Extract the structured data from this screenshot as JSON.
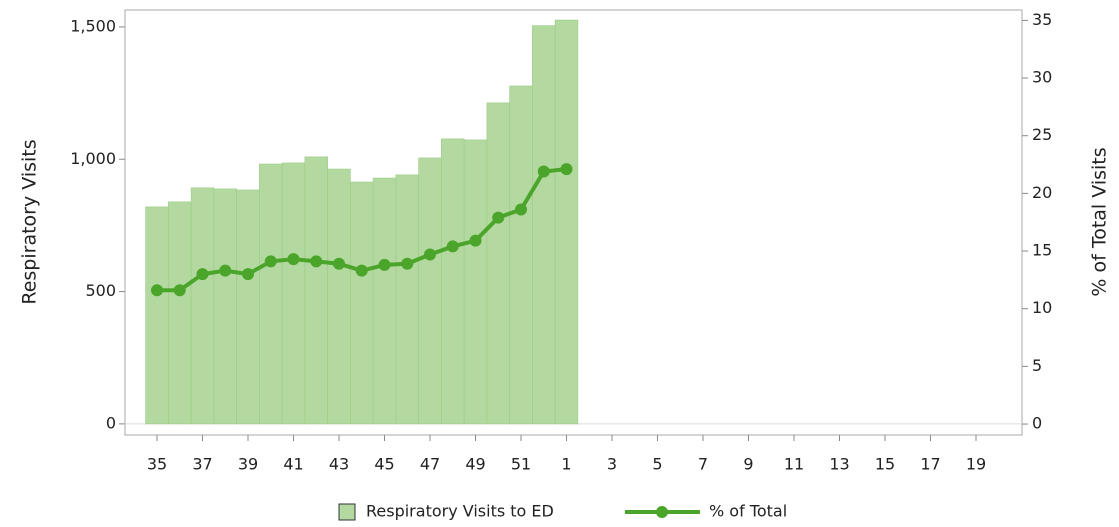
{
  "chart_data": {
    "type": "bar",
    "categories": [
      "35",
      null,
      "37",
      null,
      "39",
      null,
      "41",
      null,
      "43",
      null,
      "45",
      null,
      "47",
      null,
      "49",
      null,
      "51",
      null,
      "1",
      null,
      "3",
      null,
      "5",
      null,
      "7",
      null,
      "9",
      null,
      "11",
      null,
      "13",
      null,
      "15",
      null,
      "17",
      null,
      "19",
      null
    ],
    "series": [
      {
        "name": "Respiratory Visits to ED",
        "type": "bar",
        "color": "#b3d9a0",
        "values": [
          820,
          839,
          892,
          888,
          884,
          982,
          986,
          1009,
          963,
          914,
          929,
          941,
          1005,
          1077,
          1073,
          1213,
          1277,
          1505,
          1526,
          null,
          null,
          null,
          null,
          null,
          null,
          null,
          null,
          null,
          null,
          null,
          null,
          null,
          null,
          null,
          null,
          null,
          null,
          null
        ]
      },
      {
        "name": "% of Total",
        "type": "line",
        "axis": "y2",
        "color": "#4aa52a",
        "values": [
          11.6,
          11.6,
          13.0,
          13.3,
          13.0,
          14.1,
          14.3,
          14.1,
          13.9,
          13.3,
          13.8,
          13.9,
          14.7,
          15.4,
          15.9,
          17.9,
          18.6,
          21.9,
          22.1,
          null,
          null,
          null,
          null,
          null,
          null,
          null,
          null,
          null,
          null,
          null,
          null,
          null,
          null,
          null,
          null,
          null,
          null,
          null
        ]
      }
    ],
    "y_label": "Respiratory Visits",
    "y2_label": "% of Total Visits",
    "ylim": [
      -42,
      1564
    ],
    "yticks": [
      0,
      500,
      {
        "value": 1000,
        "label": "1,000"
      },
      {
        "value": 1500,
        "label": "1,500"
      }
    ],
    "y2lim": [
      -0.95,
      35.9
    ],
    "y2ticks": [
      0,
      5,
      10,
      15,
      20,
      25,
      30,
      35
    ],
    "legend": "bottom"
  }
}
